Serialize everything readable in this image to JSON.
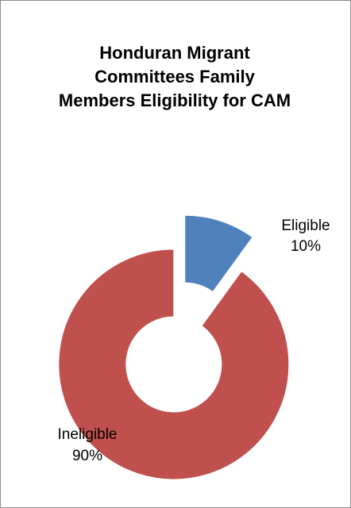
{
  "chart_data": {
    "type": "donut",
    "title": "Honduran Migrant Committees Family Members Eligibility for CAM",
    "categories": [
      "Eligible",
      "Ineligible"
    ],
    "values": [
      10,
      90
    ],
    "value_labels": [
      "10%",
      "90%"
    ],
    "colors": [
      "#4f81bd",
      "#c0504d"
    ]
  }
}
